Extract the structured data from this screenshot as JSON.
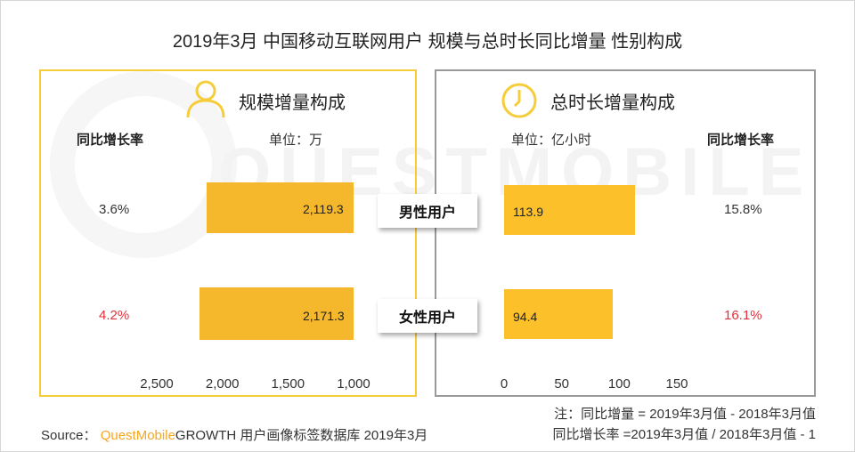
{
  "title": "2019年3月 中国移动互联网用户 规模与总时长同比增量 性别构成",
  "watermark": "QUESTMOBILE",
  "colors": {
    "left_border": "#f5cd3b",
    "right_border": "#9a9a9a",
    "bar_left": "#f5b82c",
    "bar_right": "#fcc02a",
    "rate_red": "#e0303a",
    "brand": "#f5a623"
  },
  "left_panel": {
    "heading": "规模增量构成",
    "icon": "user-icon",
    "rate_header": "同比增长率",
    "unit": "单位：万"
  },
  "right_panel": {
    "heading": "总时长增量构成",
    "icon": "clock-icon",
    "rate_header": "同比增长率",
    "unit": "单位：亿小时"
  },
  "chart_data": [
    {
      "type": "bar",
      "orientation": "horizontal",
      "direction": "reversed",
      "categories": [
        "男性用户",
        "女性用户"
      ],
      "values": [
        2119.3,
        2171.3
      ],
      "value_labels": [
        "2,119.3",
        "2,171.3"
      ],
      "rates": [
        "3.6%",
        "4.2%"
      ],
      "xlim": [
        1000,
        2500
      ],
      "ticks": [
        {
          "value": 2500,
          "label": "2,500"
        },
        {
          "value": 2000,
          "label": "2,000"
        },
        {
          "value": 1500,
          "label": "1,500"
        },
        {
          "value": 1000,
          "label": "1,000"
        }
      ]
    },
    {
      "type": "bar",
      "orientation": "horizontal",
      "categories": [
        "男性用户",
        "女性用户"
      ],
      "values": [
        113.9,
        94.4
      ],
      "value_labels": [
        "113.9",
        "94.4"
      ],
      "rates": [
        "15.8%",
        "16.1%"
      ],
      "xlim": [
        0,
        150
      ],
      "ticks": [
        {
          "value": 0,
          "label": "0"
        },
        {
          "value": 50,
          "label": "50"
        },
        {
          "value": 100,
          "label": "100"
        },
        {
          "value": 150,
          "label": "150"
        }
      ]
    }
  ],
  "rate_colors": [
    "#333333",
    "#e0303a"
  ],
  "footer": {
    "source_prefix": "Source：",
    "brand": "QuestMobile",
    "source_rest": "GROWTH 用户画像标签数据库 2019年3月",
    "note1": "注：同比增量 = 2019年3月值 - 2018年3月值",
    "note2": "同比增长率 =2019年3月值 / 2018年3月值 - 1"
  }
}
